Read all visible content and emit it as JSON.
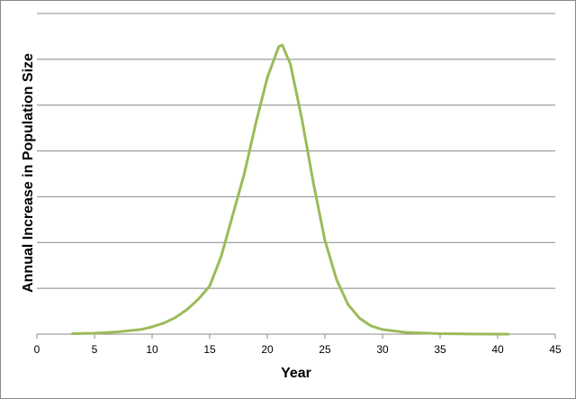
{
  "chart_data": {
    "type": "line",
    "xlabel": "Year",
    "ylabel": "Annual Increase in Population Size",
    "xlim": [
      0,
      45
    ],
    "xticks": [
      0,
      5,
      10,
      15,
      20,
      25,
      30,
      35,
      40,
      45
    ],
    "ylim": [
      0,
      7
    ],
    "yticks": [
      0,
      1,
      2,
      3,
      4,
      5,
      6,
      7
    ],
    "show_ytick_labels": false,
    "grid": true,
    "series": [
      {
        "color": "#9bbb59",
        "x": [
          3,
          5,
          7,
          9,
          10,
          11,
          12,
          13,
          14,
          15,
          16,
          17,
          18,
          19,
          20,
          21,
          21.3,
          22,
          23,
          24,
          25,
          26,
          27,
          28,
          29,
          30,
          32,
          35,
          38,
          41
        ],
        "values": [
          0.01,
          0.02,
          0.05,
          0.1,
          0.16,
          0.24,
          0.36,
          0.53,
          0.76,
          1.05,
          1.7,
          2.6,
          3.5,
          4.6,
          5.6,
          6.28,
          6.31,
          5.9,
          4.7,
          3.3,
          2.05,
          1.2,
          0.65,
          0.35,
          0.18,
          0.1,
          0.04,
          0.01,
          0.003,
          0.001
        ]
      }
    ]
  }
}
